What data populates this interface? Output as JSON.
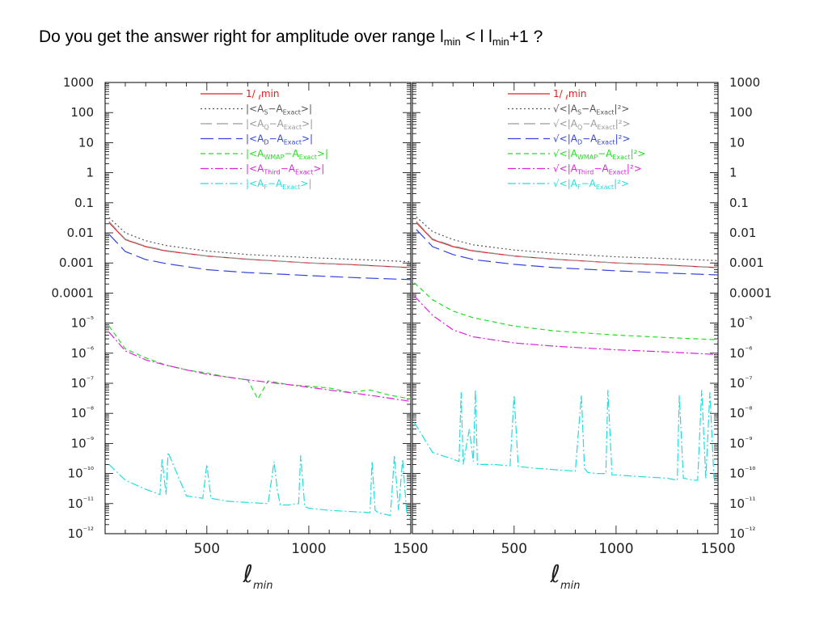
{
  "slide": {
    "title_part1": "Do you get the answer right for amplitude over range l",
    "title_sub1": "min",
    "title_part2": " < l l",
    "title_sub2": "min",
    "title_part3": "+1 ?"
  },
  "chart_data": [
    {
      "type": "line",
      "title": "",
      "xlabel": "ℓ_min",
      "ylabel": "",
      "xlim": [
        1,
        1500
      ],
      "ylim": [
        1e-12,
        1000
      ],
      "yscale": "log",
      "grid": false,
      "legend_position": "top-center",
      "x_ticks": [
        500,
        1000,
        1500
      ],
      "x_tick_labels": [
        "500",
        "1000",
        "1500"
      ],
      "y_ticks": [
        1000,
        100,
        10,
        1,
        0.1,
        0.01,
        0.001,
        0.0001,
        1e-05,
        1e-06,
        1e-07,
        1e-08,
        1e-09,
        1e-10,
        1e-11,
        1e-12
      ],
      "y_tick_labels": [
        "1000",
        "100",
        "10",
        "1",
        "0.1",
        "0.01",
        "0.001",
        "0.0001",
        "10⁻⁵",
        "10⁻⁶",
        "10⁻⁷",
        "10⁻⁸",
        "10⁻⁹",
        "10⁻¹⁰",
        "10⁻¹¹",
        "10⁻¹²"
      ],
      "series": [
        {
          "name": "1/ ℓ_min",
          "legend": [
            "1/ ",
            "ℓ",
            "min",
            "",
            "",
            ""
          ],
          "color": "#e02020",
          "dash": "",
          "x": [
            20,
            100,
            200,
            300,
            500,
            700,
            1000,
            1250,
            1500
          ],
          "values": [
            0.022,
            0.006,
            0.0035,
            0.0025,
            0.0017,
            0.00132,
            0.001,
            0.00085,
            0.0007
          ]
        },
        {
          "name": "|<A_S−A_Exact>|",
          "legend": [
            "|<A",
            "S",
            "−A",
            "Exact",
            ">|",
            ""
          ],
          "color": "#555555",
          "dash": "2,3",
          "x": [
            20,
            100,
            200,
            300,
            500,
            700,
            1000,
            1250,
            1500
          ],
          "values": [
            0.032,
            0.01,
            0.0055,
            0.0038,
            0.0025,
            0.0019,
            0.0015,
            0.0013,
            0.0011
          ]
        },
        {
          "name": "|<A_Q−A_Exact>|",
          "legend": [
            "|<A",
            "Q",
            "−A",
            "Exact",
            ">|",
            ""
          ],
          "color": "#999999",
          "dash": "14,6",
          "x": [
            20,
            100,
            200,
            300,
            500,
            700,
            1000,
            1250,
            1500
          ],
          "values": [
            0.024,
            0.0062,
            0.0036,
            0.0026,
            0.0017,
            0.00135,
            0.001,
            0.00087,
            0.0007
          ]
        },
        {
          "name": "|<A_D−A_Exact>|",
          "legend": [
            "|<A",
            "D",
            "−A",
            "Exact",
            ">|",
            ""
          ],
          "color": "#3344dd",
          "dash": "16,6",
          "x": [
            20,
            100,
            200,
            300,
            500,
            700,
            1000,
            1250,
            1500
          ],
          "values": [
            0.009,
            0.0024,
            0.0013,
            0.00095,
            0.0006,
            0.00048,
            0.00038,
            0.00032,
            0.00028
          ]
        },
        {
          "name": "|<A_WMAP−A_Exact>|",
          "legend": [
            "|<A",
            "WMAP",
            "−A",
            "Exact",
            ">|",
            ""
          ],
          "color": "#22dd22",
          "dash": "6,4",
          "x": [
            20,
            100,
            200,
            300,
            400,
            500,
            600,
            700,
            750,
            800,
            900,
            1000,
            1100,
            1200,
            1300,
            1400,
            1500
          ],
          "values": [
            8e-06,
            1.4e-06,
            7e-07,
            4e-07,
            2.8e-07,
            2.2e-07,
            1.6e-07,
            1.3e-07,
            3e-08,
            1.2e-07,
            9e-08,
            8e-08,
            7e-08,
            5e-08,
            6e-08,
            4e-08,
            3e-08
          ]
        },
        {
          "name": "|<A_Third−A_Exact>|",
          "legend": [
            "|<A",
            "Third",
            "−A",
            "Exact",
            ">|",
            ""
          ],
          "color": "#dd22dd",
          "dash": "10,3,2,3",
          "x": [
            20,
            100,
            200,
            300,
            400,
            500,
            700,
            900,
            1100,
            1300,
            1500
          ],
          "values": [
            5e-06,
            1.2e-06,
            6e-07,
            4e-07,
            2.8e-07,
            2e-07,
            1.3e-07,
            9e-08,
            6e-08,
            4e-08,
            2.5e-08
          ]
        },
        {
          "name": "|<A_F−A_Exact>|",
          "legend": [
            "|<A",
            "F",
            "−A",
            "Exact",
            ">|",
            ""
          ],
          "color": "#22dddd",
          "dash": "10,3,2,3",
          "x": [
            20,
            100,
            200,
            270,
            280,
            300,
            310,
            400,
            480,
            500,
            520,
            600,
            800,
            830,
            845,
            860,
            900,
            950,
            960,
            980,
            1000,
            1100,
            1300,
            1310,
            1325,
            1340,
            1400,
            1420,
            1440,
            1460,
            1480,
            1500
          ],
          "values": [
            2e-10,
            6e-11,
            3e-11,
            2e-11,
            3e-10,
            2e-11,
            5e-10,
            1.8e-11,
            1.5e-11,
            2e-10,
            1.5e-11,
            1.2e-11,
            1e-11,
            2.5e-10,
            3e-11,
            9e-12,
            9e-12,
            1e-11,
            4e-10,
            8e-12,
            7e-12,
            6e-12,
            5e-12,
            2.5e-10,
            6e-12,
            5e-12,
            4e-12,
            4e-10,
            6e-12,
            3e-10,
            5e-12,
            3e-12
          ]
        }
      ]
    },
    {
      "type": "line",
      "title": "",
      "xlabel": "ℓ_min",
      "ylabel": "",
      "xlim": [
        1,
        1500
      ],
      "ylim": [
        1e-12,
        1000
      ],
      "yscale": "log",
      "grid": false,
      "legend_position": "top-center",
      "x_ticks": [
        500,
        1000,
        1500
      ],
      "x_tick_labels": [
        "500",
        "1000",
        "1500"
      ],
      "y_ticks": [
        1000,
        100,
        10,
        1,
        0.1,
        0.01,
        0.001,
        0.0001,
        1e-05,
        1e-06,
        1e-07,
        1e-08,
        1e-09,
        1e-10,
        1e-11,
        1e-12
      ],
      "y_tick_labels": [
        "1000",
        "100",
        "10",
        "1",
        "0.1",
        "0.01",
        "0.001",
        "0.0001",
        "10⁻⁵",
        "10⁻⁶",
        "10⁻⁷",
        "10⁻⁸",
        "10⁻⁹",
        "10⁻¹⁰",
        "10⁻¹¹",
        "10⁻¹²"
      ],
      "series": [
        {
          "name": "1/ ℓ_min",
          "legend": [
            "1/ ",
            "ℓ",
            "min",
            "",
            "",
            ""
          ],
          "color": "#e02020",
          "dash": "",
          "x": [
            20,
            100,
            200,
            300,
            500,
            700,
            1000,
            1250,
            1500
          ],
          "values": [
            0.022,
            0.006,
            0.0035,
            0.0025,
            0.0017,
            0.00132,
            0.001,
            0.00085,
            0.0007
          ]
        },
        {
          "name": "√<|A_S−A_Exact|²>",
          "legend": [
            "√<|A",
            "S",
            "−A",
            "Exact",
            "|²>",
            ""
          ],
          "color": "#555555",
          "dash": "2,3",
          "x": [
            20,
            100,
            200,
            300,
            500,
            700,
            1000,
            1250,
            1500
          ],
          "values": [
            0.034,
            0.011,
            0.006,
            0.004,
            0.0027,
            0.0021,
            0.0016,
            0.0014,
            0.0012
          ]
        },
        {
          "name": "√<|A_Q−A_Exact|²>",
          "legend": [
            "√<|A",
            "Q",
            "−A",
            "Exact",
            "|²>",
            ""
          ],
          "color": "#999999",
          "dash": "14,6",
          "x": [
            20,
            100,
            200,
            300,
            500,
            700,
            1000,
            1250,
            1500
          ],
          "values": [
            0.024,
            0.0063,
            0.0037,
            0.0026,
            0.0017,
            0.00135,
            0.001,
            0.00087,
            0.0007
          ]
        },
        {
          "name": "√<|A_D−A_Exact|²>",
          "legend": [
            "√<|A",
            "D",
            "−A",
            "Exact",
            "|²>",
            ""
          ],
          "color": "#3344dd",
          "dash": "16,6",
          "x": [
            20,
            100,
            200,
            300,
            500,
            700,
            1000,
            1250,
            1500
          ],
          "values": [
            0.013,
            0.0035,
            0.0019,
            0.0013,
            0.0009,
            0.0007,
            0.00055,
            0.00046,
            0.0004
          ]
        },
        {
          "name": "√<|A_WMAP−A_Exact|²>",
          "legend": [
            "√<|A",
            "WMAP",
            "−A",
            "Exact",
            "|²>",
            ""
          ],
          "color": "#22dd22",
          "dash": "6,4",
          "x": [
            10,
            100,
            200,
            300,
            500,
            700,
            1000,
            1250,
            1500
          ],
          "values": [
            0.00022,
            6e-05,
            2.5e-05,
            1.5e-05,
            8e-06,
            5.5e-06,
            4e-06,
            3.3e-06,
            2.8e-06
          ]
        },
        {
          "name": "√<|A_Third−A_Exact|²>",
          "legend": [
            "√<|A",
            "Third",
            "−A",
            "Exact",
            "|²>",
            ""
          ],
          "color": "#dd22dd",
          "dash": "10,3,2,3",
          "x": [
            10,
            100,
            200,
            300,
            500,
            700,
            1000,
            1250,
            1500
          ],
          "values": [
            8e-05,
            1.8e-05,
            6e-06,
            3.5e-06,
            2.2e-06,
            1.7e-06,
            1.3e-06,
            1.1e-06,
            9e-07
          ]
        },
        {
          "name": "√<|A_F−A_Exact|²>",
          "legend": [
            "√<|A",
            "F",
            "−A",
            "Exact",
            "|²>",
            ""
          ],
          "color": "#22dddd",
          "dash": "10,3,2,3",
          "x": [
            10,
            100,
            200,
            230,
            240,
            250,
            280,
            300,
            310,
            320,
            400,
            480,
            500,
            520,
            600,
            800,
            830,
            845,
            860,
            900,
            950,
            960,
            980,
            1000,
            1100,
            1250,
            1300,
            1310,
            1330,
            1380,
            1400,
            1420,
            1440,
            1460,
            1480,
            1500
          ],
          "values": [
            5e-09,
            5e-10,
            3e-10,
            2.5e-10,
            5e-08,
            2e-10,
            3e-09,
            2.5e-10,
            6e-08,
            2e-10,
            2e-10,
            1.8e-10,
            4e-08,
            1.7e-10,
            1.5e-10,
            1.2e-10,
            4e-08,
            1.5e-10,
            1.1e-10,
            1e-10,
            1e-10,
            6e-08,
            9e-11,
            9e-11,
            8e-11,
            7e-11,
            6e-11,
            4e-08,
            7e-11,
            6e-11,
            6e-11,
            6e-08,
            7e-11,
            5e-08,
            7e-11,
            5e-11
          ]
        }
      ]
    }
  ]
}
